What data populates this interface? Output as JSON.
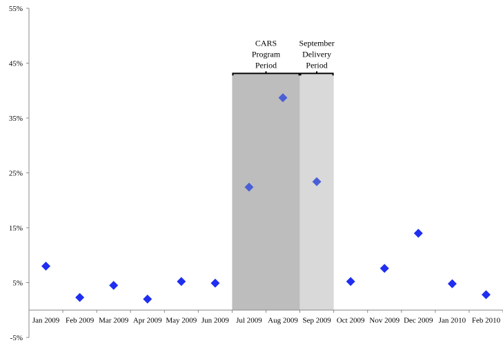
{
  "chart_data": {
    "type": "scatter",
    "title": "",
    "xlabel": "",
    "ylabel": "",
    "categories": [
      "Jan 2009",
      "Feb 2009",
      "Mar 2009",
      "Apr 2009",
      "May 2009",
      "Jun 2009",
      "Jul 2009",
      "Aug 2009",
      "Sep 2009",
      "Oct 2009",
      "Nov 2009",
      "Dec 2009",
      "Jan 2010",
      "Feb 2010"
    ],
    "values": [
      8.0,
      2.3,
      4.5,
      2.0,
      5.2,
      4.9,
      22.4,
      38.7,
      23.4,
      5.2,
      7.6,
      14.0,
      4.8,
      2.8
    ],
    "ylim": [
      -5,
      55
    ],
    "y_ticks": [
      -5,
      5,
      15,
      25,
      35,
      45,
      55
    ],
    "y_tick_labels": [
      "-5%",
      "5%",
      "15%",
      "25%",
      "35%",
      "45%",
      "55%"
    ],
    "grid": false,
    "legend": "none",
    "marker_color": "#1f2ef0",
    "highlight_marker_color": "#4a5fd6",
    "shaded_periods": [
      {
        "start_category": "Jul 2009",
        "end_category": "Aug 2009",
        "label_lines": [
          "CARS",
          "Program",
          "Period"
        ],
        "color": "#bdbdbd",
        "top_value": 43
      },
      {
        "start_category": "Sep 2009",
        "end_category": "Sep 2009",
        "label_lines": [
          "September",
          "Delivery",
          "Period"
        ],
        "color": "#d9d9d9",
        "top_value": 43
      }
    ]
  }
}
